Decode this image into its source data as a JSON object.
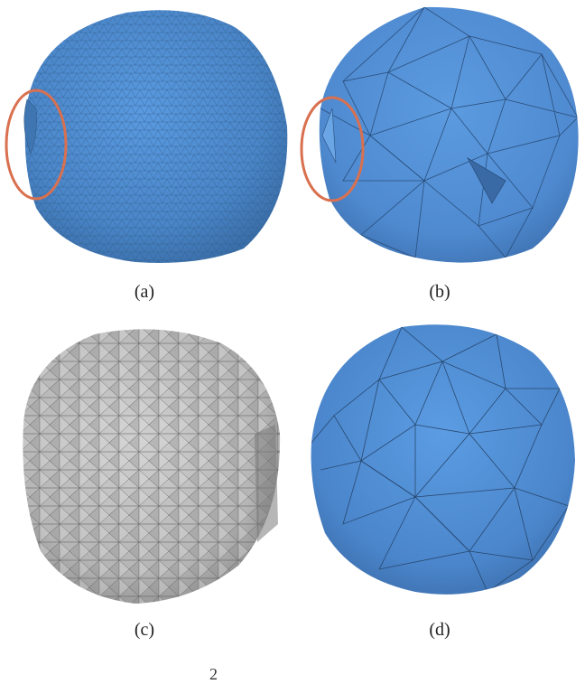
{
  "figure": {
    "panels": [
      {
        "id": "a",
        "caption": "(a)",
        "mesh": "fine-triangular-mesh",
        "color": "#4a86c8",
        "highlight": true
      },
      {
        "id": "b",
        "caption": "(b)",
        "mesh": "coarse-triangular-mesh",
        "color": "#4f8ad0",
        "highlight": true
      },
      {
        "id": "c",
        "caption": "(c)",
        "mesh": "voxel-tetrahedral-mesh",
        "color": "#b9b9b9",
        "highlight": false
      },
      {
        "id": "d",
        "caption": "(d)",
        "mesh": "geodesic-triangular-mesh",
        "color": "#4b86cc",
        "highlight": false
      }
    ],
    "highlight_color": "#d9704f",
    "bottom_fragment": "2"
  }
}
